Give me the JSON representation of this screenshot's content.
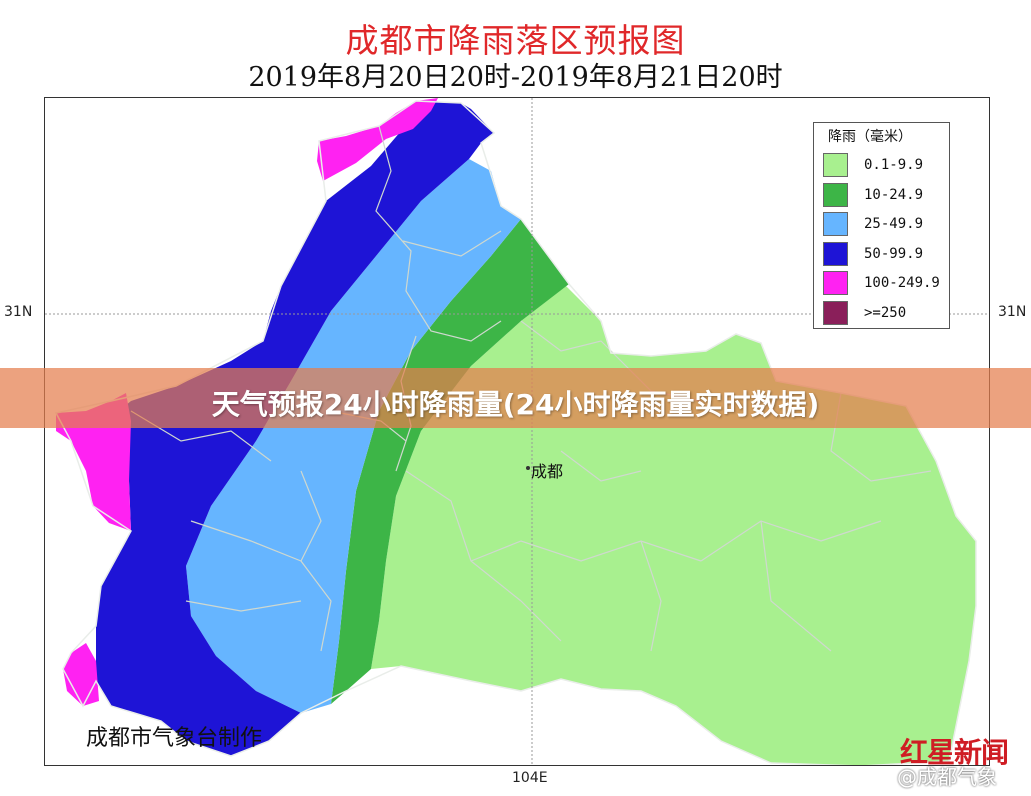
{
  "map": {
    "title": "成都市降雨落区预报图",
    "subtitle": "2019年8月20日20时-2019年8月21日20时",
    "lat_label_left": "31N",
    "lat_label_right": "31N",
    "lon_label_bottom": "104E",
    "city_label": "成都",
    "credit": "成都市气象台制作"
  },
  "legend": {
    "title": "降雨（毫米）",
    "items": [
      {
        "label": "0.1-9.9",
        "color": "#a8f08f"
      },
      {
        "label": "10-24.9",
        "color": "#3db547"
      },
      {
        "label": "25-49.9",
        "color": "#66b5ff"
      },
      {
        "label": "50-99.9",
        "color": "#1e14d6"
      },
      {
        "label": "100-249.9",
        "color": "#ff22f2"
      },
      {
        "label": ">=250",
        "color": "#8a1f5a"
      }
    ]
  },
  "overlay": {
    "banner_text": "天气预报24小时降雨量(24小时降雨量实时数据)"
  },
  "watermark": {
    "logo_text": "红星新闻",
    "weibo_text": "@成都气象"
  }
}
